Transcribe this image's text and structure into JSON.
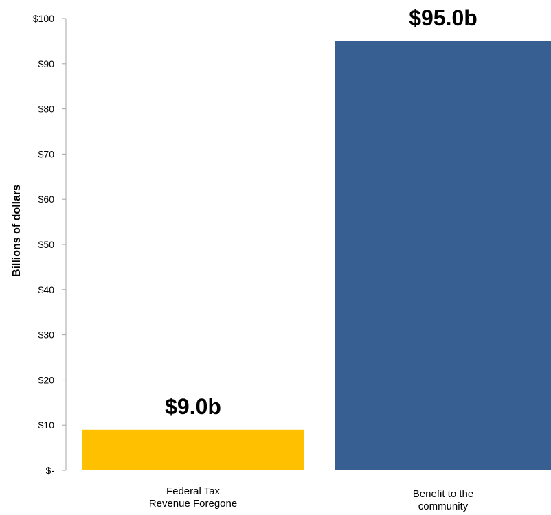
{
  "chart_data": {
    "type": "bar",
    "title": "",
    "xlabel": "",
    "ylabel": "Billions of dollars",
    "ylim": [
      0,
      100
    ],
    "grid": false,
    "legend": "none",
    "y_ticks": [
      {
        "value": 0,
        "label": "$-"
      },
      {
        "value": 10,
        "label": "$10"
      },
      {
        "value": 20,
        "label": "$20"
      },
      {
        "value": 30,
        "label": "$30"
      },
      {
        "value": 40,
        "label": "$40"
      },
      {
        "value": 50,
        "label": "$50"
      },
      {
        "value": 60,
        "label": "$60"
      },
      {
        "value": 70,
        "label": "$70"
      },
      {
        "value": 80,
        "label": "$80"
      },
      {
        "value": 90,
        "label": "$90"
      },
      {
        "value": 100,
        "label": "$100"
      }
    ],
    "categories": [
      [
        "Federal Tax",
        "Revenue Foregone"
      ],
      [
        "Benefit to the",
        "community"
      ]
    ],
    "values": [
      9.0,
      95.0
    ],
    "data_labels": [
      "$9.0b",
      "$95.0b"
    ],
    "colors": [
      "#FFC000",
      "#375F92"
    ],
    "axis_color": "#A6A6A6"
  }
}
